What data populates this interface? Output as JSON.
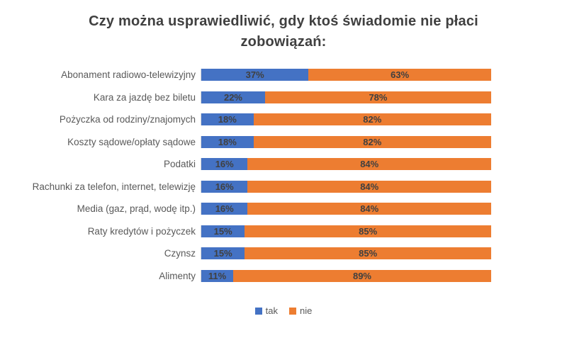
{
  "chart_data": {
    "type": "bar",
    "orientation": "horizontal-stacked",
    "title": "Czy można usprawiedliwić, gdy ktoś świadomie nie płaci zobowiązań:",
    "categories": [
      "Abonament radiowo-telewizyjny",
      "Kara za jazdę bez biletu",
      "Pożyczka od rodziny/znajomych",
      "Koszty sądowe/opłaty sądowe",
      "Podatki",
      "Rachunki za telefon, internet, telewizję",
      "Media (gaz, prąd, wodę itp.)",
      "Raty kredytów i pożyczek",
      "Czynsz",
      "Alimenty"
    ],
    "series": [
      {
        "name": "tak",
        "color": "#4472C4",
        "values": [
          37,
          22,
          18,
          18,
          16,
          16,
          16,
          15,
          15,
          11
        ],
        "labels": [
          "37%",
          "22%",
          "18%",
          "18%",
          "16%",
          "16%",
          "16%",
          "15%",
          "15%",
          "11%"
        ]
      },
      {
        "name": "nie",
        "color": "#ED7D31",
        "values": [
          63,
          78,
          82,
          82,
          84,
          84,
          84,
          85,
          85,
          89
        ],
        "labels": [
          "63%",
          "78%",
          "82%",
          "82%",
          "84%",
          "84%",
          "84%",
          "85%",
          "85%",
          "89%"
        ]
      }
    ],
    "xlim": [
      0,
      100
    ],
    "grid": false,
    "legend_position": "bottom",
    "axis_line_color": "#D9D9D9",
    "value_label_color": "#404040",
    "category_label_color": "#595959",
    "title_color": "#404040"
  }
}
